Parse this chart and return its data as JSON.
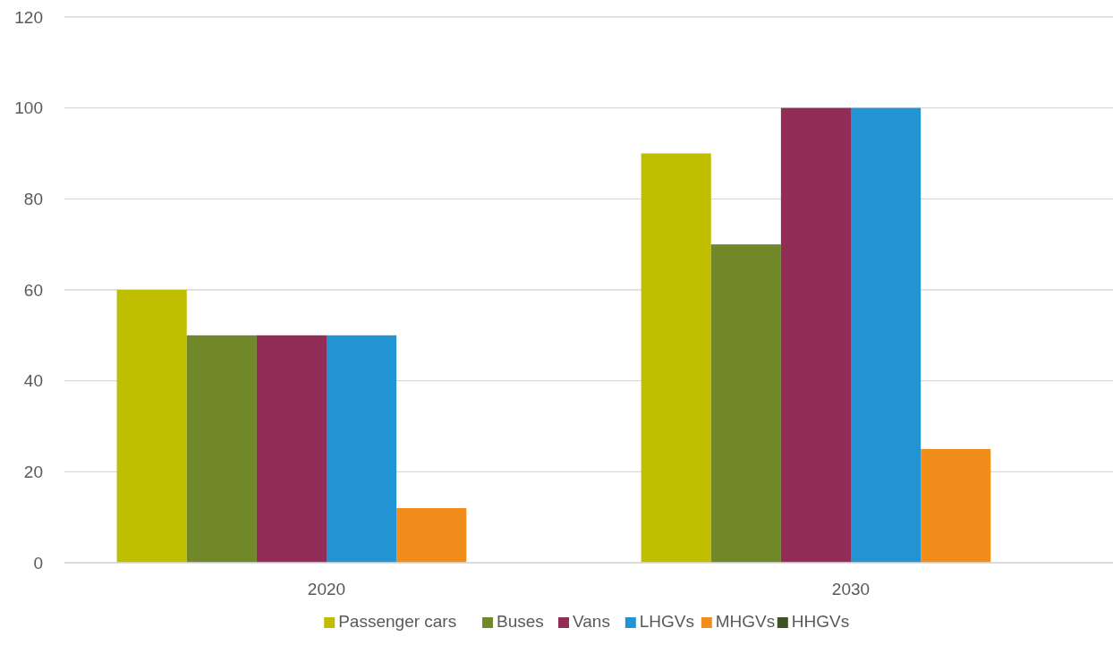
{
  "chart_data": {
    "type": "bar",
    "categories": [
      "2020",
      "2030"
    ],
    "series": [
      {
        "name": "Passenger cars",
        "color": "#bfbf00",
        "values": [
          60,
          90
        ]
      },
      {
        "name": "Buses",
        "color": "#71882a",
        "values": [
          50,
          70
        ]
      },
      {
        "name": "Vans",
        "color": "#922d57",
        "values": [
          50,
          100
        ]
      },
      {
        "name": "LHGVs",
        "color": "#2394d3",
        "values": [
          50,
          100
        ]
      },
      {
        "name": "MHGVs",
        "color": "#f28d1b",
        "values": [
          12,
          25
        ]
      },
      {
        "name": "HHGVs",
        "color": "#3e5323",
        "values": [
          0,
          0
        ]
      }
    ],
    "ylim": [
      0,
      120
    ],
    "yticks": [
      0,
      20,
      40,
      60,
      80,
      100,
      120
    ],
    "grid": "y",
    "legend": "bottom"
  }
}
